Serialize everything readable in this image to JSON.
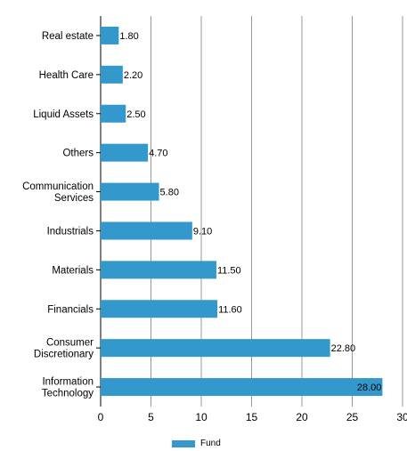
{
  "chart_data": {
    "type": "bar",
    "orientation": "horizontal",
    "categories": [
      "Real estate",
      "Health Care",
      "Liquid Assets",
      "Others",
      "Communication Services",
      "Industrials",
      "Materials",
      "Financials",
      "Consumer Discretionary",
      "Information Technology"
    ],
    "category_lines": [
      [
        "Real estate"
      ],
      [
        "Health Care"
      ],
      [
        "Liquid Assets"
      ],
      [
        "Others"
      ],
      [
        "Communication",
        "Services"
      ],
      [
        "Industrials"
      ],
      [
        "Materials"
      ],
      [
        "Financials"
      ],
      [
        "Consumer",
        "Discretionary"
      ],
      [
        "Information",
        "Technology"
      ]
    ],
    "series": [
      {
        "name": "Fund",
        "values": [
          1.8,
          2.2,
          2.5,
          4.7,
          5.8,
          9.1,
          11.5,
          11.6,
          22.8,
          28.0
        ],
        "labels": [
          "1.80",
          "2.20",
          "2.50",
          "4.70",
          "5.80",
          "9.10",
          "11.50",
          "11.60",
          "22.80",
          "28.00"
        ]
      }
    ],
    "xlim": [
      0,
      30
    ],
    "xticks": [
      "0",
      "5",
      "10",
      "15",
      "20",
      "25",
      "30"
    ],
    "grid": "vertical",
    "legend": "bottom",
    "color": "#3399cc"
  }
}
